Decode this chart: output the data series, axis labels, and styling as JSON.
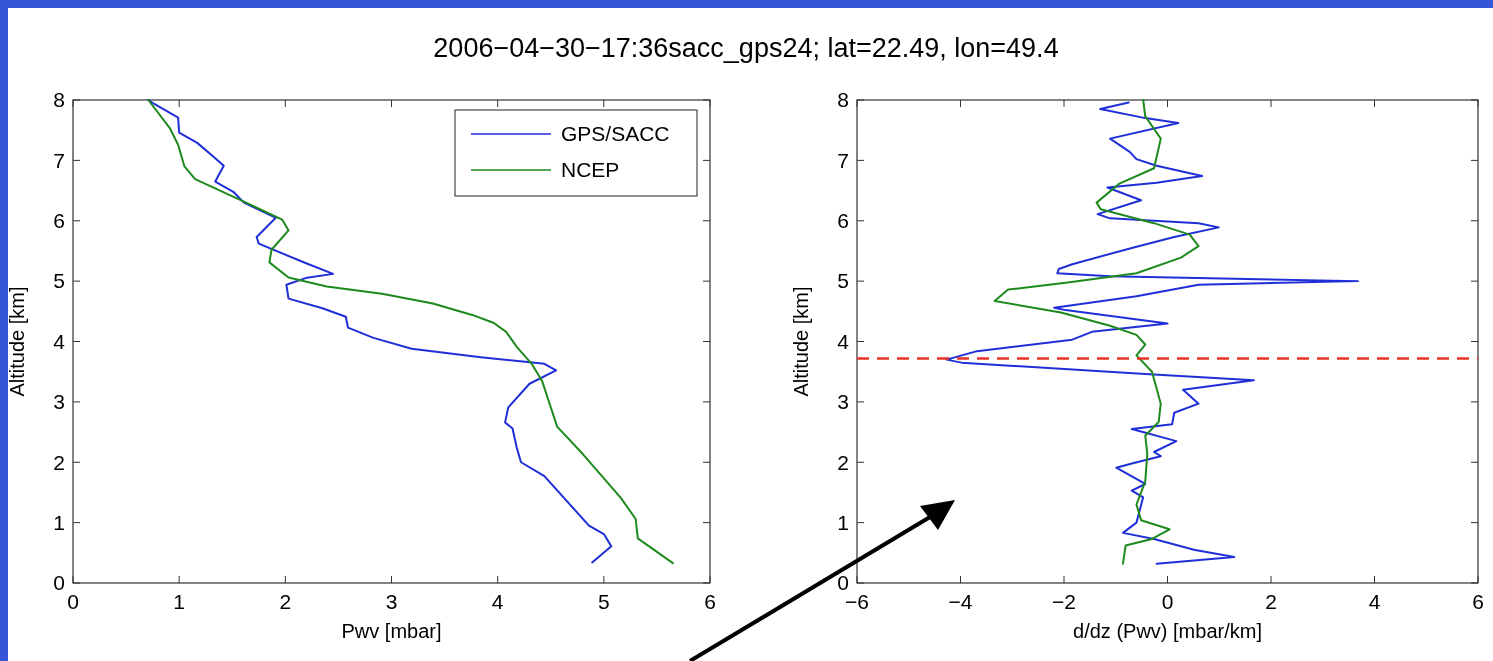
{
  "chart_data": [
    {
      "type": "line",
      "title": "2006−04−30−17:36sacc_gps24; lat=22.49, lon=49.4",
      "xlabel": "Pwv [mbar]",
      "ylabel": "Altitude [km]",
      "xlim": [
        0,
        6
      ],
      "xticks": [
        0,
        1,
        2,
        3,
        4,
        5,
        6
      ],
      "ylim": [
        0,
        8
      ],
      "yticks": [
        0,
        1,
        2,
        3,
        4,
        5,
        6,
        7,
        8
      ],
      "grid": false,
      "legend": "top right",
      "series": [
        {
          "name": "GPS/SACC",
          "color": "#1f2fd8",
          "x": [
            4.89,
            5.07,
            5.0,
            4.86,
            4.44,
            4.22,
            4.18,
            4.14,
            4.07,
            4.1,
            4.3,
            4.55,
            4.44,
            3.84,
            3.19,
            2.83,
            2.59,
            2.57,
            2.35,
            2.03,
            2.01,
            2.19,
            2.45,
            2.19,
            1.75,
            1.73,
            1.83,
            1.91,
            1.61,
            1.51,
            1.34,
            1.42,
            1.31,
            1.17,
            1.0,
            0.99,
            0.77,
            0.71
          ],
          "values": [
            0.34,
            0.61,
            0.81,
            0.95,
            1.77,
            2.0,
            2.24,
            2.56,
            2.66,
            2.91,
            3.3,
            3.52,
            3.63,
            3.74,
            3.88,
            4.06,
            4.23,
            4.41,
            4.55,
            4.71,
            4.94,
            5.05,
            5.12,
            5.3,
            5.62,
            5.73,
            5.91,
            6.05,
            6.3,
            6.48,
            6.65,
            6.91,
            7.08,
            7.29,
            7.46,
            7.71,
            7.93,
            8.0
          ]
        },
        {
          "name": "NCEP",
          "color": "#1e8a1e",
          "x": [
            5.65,
            5.32,
            5.3,
            5.16,
            4.8,
            4.56,
            4.5,
            4.42,
            4.32,
            4.18,
            4.08,
            3.96,
            3.76,
            3.39,
            2.91,
            2.39,
            2.03,
            1.85,
            1.87,
            2.03,
            1.97,
            1.63,
            1.15,
            1.05,
            0.99,
            0.91,
            0.71
          ],
          "values": [
            0.33,
            0.74,
            1.06,
            1.41,
            2.14,
            2.59,
            2.91,
            3.34,
            3.63,
            3.91,
            4.16,
            4.31,
            4.44,
            4.63,
            4.79,
            4.91,
            5.06,
            5.31,
            5.52,
            5.84,
            6.02,
            6.3,
            6.69,
            6.9,
            7.26,
            7.54,
            8.0
          ]
        }
      ]
    },
    {
      "type": "line",
      "xlabel": "d/dz (Pwv) [mbar/km]",
      "ylabel": "Altitude [km]",
      "xlim": [
        -6,
        6
      ],
      "xticks": [
        -6,
        -4,
        -2,
        0,
        2,
        4,
        6
      ],
      "ylim": [
        0,
        8
      ],
      "yticks": [
        0,
        1,
        2,
        3,
        4,
        5,
        6,
        7,
        8
      ],
      "grid": false,
      "ref_lines": [
        {
          "axis": "y",
          "value": 3.72,
          "color": "#e8332a",
          "line_style": "dashed"
        }
      ],
      "series": [
        {
          "color": "#1f2fd8",
          "x": [
            -0.21,
            1.29,
            0.51,
            -0.26,
            -0.86,
            -0.6,
            -0.47,
            -0.69,
            -0.43,
            -0.99,
            -0.69,
            -0.13,
            -0.26,
            0.17,
            -0.69,
            0.09,
            0.13,
            0.6,
            0.3,
            1.67,
            -0.43,
            -3.98,
            -4.27,
            -3.68,
            -1.84,
            -1.46,
            0,
            -1.97,
            -2.19,
            -0.6,
            0.6,
            3.68,
            -1.11,
            -2.13,
            -2.1,
            -1.84,
            -0.69,
            0.13,
            0.99,
            0.6,
            -1.11,
            -1.35,
            -0.51,
            -1.16,
            -0.21,
            0.67,
            -0.21,
            -0.6,
            -0.73,
            -1.11,
            0.21,
            -0.43,
            -1.3,
            -0.75
          ],
          "values": [
            0.32,
            0.43,
            0.55,
            0.73,
            0.83,
            1.0,
            1.42,
            1.53,
            1.64,
            1.91,
            1.98,
            2.1,
            2.17,
            2.35,
            2.55,
            2.63,
            2.82,
            2.97,
            3.2,
            3.36,
            3.46,
            3.65,
            3.7,
            3.84,
            4.03,
            4.16,
            4.3,
            4.52,
            4.56,
            4.75,
            4.94,
            5.0,
            5.08,
            5.13,
            5.2,
            5.28,
            5.55,
            5.73,
            5.89,
            5.96,
            6.04,
            6.11,
            6.34,
            6.55,
            6.63,
            6.74,
            6.91,
            7.02,
            7.14,
            7.36,
            7.62,
            7.7,
            7.85,
            7.96
          ]
        },
        {
          "color": "#1e8a1e",
          "x": [
            -0.86,
            -0.81,
            -0.3,
            0.04,
            -0.51,
            -0.6,
            -0.43,
            -0.39,
            -0.43,
            -0.17,
            -0.13,
            -0.3,
            -0.6,
            -0.43,
            -0.6,
            -1.11,
            -2.06,
            -3.34,
            -3.08,
            -1.89,
            -0.6,
            0.26,
            0.6,
            0.43,
            -0.26,
            -1.29,
            -1.37,
            -0.94,
            -0.26,
            -0.13,
            -0.43,
            -0.47
          ],
          "values": [
            0.32,
            0.62,
            0.73,
            0.89,
            1.04,
            1.3,
            1.68,
            2.14,
            2.44,
            2.67,
            2.97,
            3.5,
            3.77,
            3.95,
            4.11,
            4.26,
            4.48,
            4.67,
            4.86,
            4.98,
            5.13,
            5.39,
            5.58,
            5.77,
            5.96,
            6.19,
            6.3,
            6.61,
            6.87,
            7.36,
            7.73,
            8.0
          ]
        }
      ]
    }
  ]
}
